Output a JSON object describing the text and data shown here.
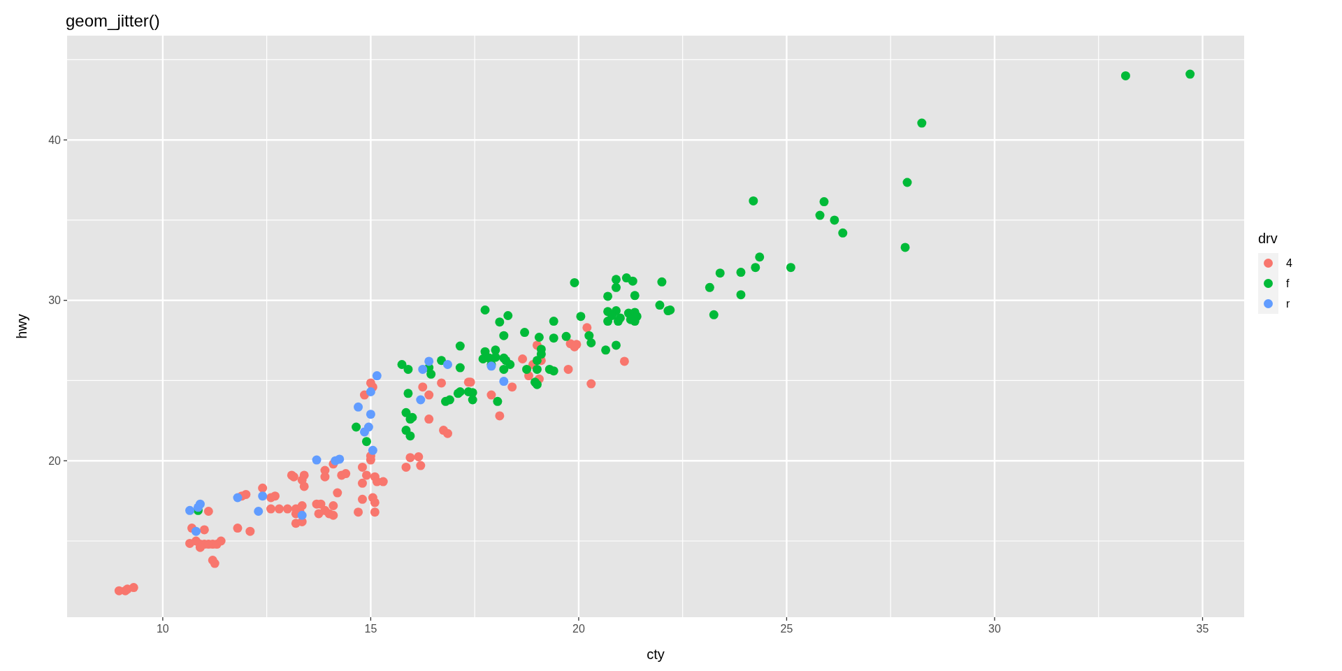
{
  "chart_data": {
    "type": "scatter",
    "title": "geom_jitter()",
    "xlabel": "cty",
    "ylabel": "hwy",
    "legend_title": "drv",
    "legend": "right",
    "grid": true,
    "marker": "circle",
    "xlim": [
      7.7,
      36.0
    ],
    "ylim": [
      10.25,
      46.5
    ],
    "xticks": [
      10,
      {
        "value": 12.5,
        "label": null
      },
      15,
      {
        "value": 17.5,
        "label": null
      },
      20,
      {
        "value": 22.5,
        "label": null
      },
      25,
      {
        "value": 27.5,
        "label": null
      },
      30,
      {
        "value": 32.5,
        "label": null
      },
      35
    ],
    "yticks": [
      {
        "value": 15,
        "label": null
      },
      20,
      {
        "value": 25,
        "label": null
      },
      30,
      {
        "value": 35,
        "label": null
      },
      40,
      {
        "value": 45,
        "label": null
      }
    ],
    "series": [
      {
        "name": "4",
        "color": "#f8766d",
        "x": [
          8.95,
          9.1,
          9.15,
          9.3,
          10.8,
          10.9,
          11.0,
          11.1,
          11.2,
          11.3,
          11.4,
          10.7,
          11.0,
          11.2,
          11.25,
          11.1,
          11.8,
          12.1,
          12.0,
          11.9,
          12.4,
          12.6,
          12.7,
          12.6,
          12.8,
          13.0,
          13.1,
          13.15,
          13.2,
          13.35,
          13.2,
          13.3,
          13.2,
          13.35,
          13.4,
          13.35,
          13.4,
          13.7,
          13.8,
          13.9,
          13.75,
          14.0,
          14.1,
          14.1,
          14.2,
          13.9,
          13.9,
          14.1,
          14.3,
          14.4,
          14.7,
          14.8,
          14.8,
          14.8,
          14.85,
          14.9,
          15.0,
          15.0,
          15.1,
          15.15,
          15.3,
          15.0,
          15.05,
          15.05,
          15.1,
          15.1,
          10.65,
          10.9,
          15.85,
          15.95,
          16.15,
          16.2,
          16.25,
          16.4,
          16.75,
          16.85,
          16.4,
          16.7,
          17.35,
          17.4,
          17.9,
          18.1,
          18.4,
          18.65,
          19.0,
          18.8,
          19.05,
          18.9,
          19.1,
          20.2,
          19.8,
          19.95,
          19.9,
          21.1,
          20.3,
          19.75
        ],
        "values": [
          11.9,
          11.9,
          12.0,
          12.1,
          15.0,
          14.8,
          14.8,
          14.8,
          14.8,
          14.8,
          15.0,
          15.8,
          15.7,
          13.8,
          13.6,
          16.85,
          15.8,
          15.6,
          17.9,
          17.8,
          18.3,
          17.7,
          17.8,
          17.0,
          17.0,
          17.0,
          19.1,
          19.0,
          16.1,
          16.2,
          16.7,
          16.8,
          17.0,
          17.2,
          18.4,
          18.8,
          19.1,
          17.3,
          17.3,
          16.9,
          16.7,
          16.7,
          16.6,
          17.2,
          18.0,
          19.0,
          19.4,
          19.8,
          19.1,
          19.2,
          16.8,
          17.6,
          18.6,
          19.6,
          24.1,
          19.1,
          20.05,
          20.3,
          19.0,
          18.7,
          18.7,
          24.85,
          24.6,
          17.7,
          17.4,
          16.8,
          14.85,
          14.6,
          19.6,
          20.2,
          20.25,
          19.7,
          24.6,
          22.6,
          21.9,
          21.7,
          24.1,
          24.85,
          24.9,
          24.9,
          24.1,
          22.8,
          24.6,
          26.35,
          27.2,
          25.3,
          25.1,
          26.0,
          26.25,
          28.3,
          27.3,
          27.25,
          27.1,
          26.2,
          24.8,
          25.7
        ]
      },
      {
        "name": "f",
        "color": "#00ba38",
        "x": [
          10.85,
          14.65,
          14.9,
          15.75,
          15.9,
          15.9,
          15.85,
          15.95,
          16.0,
          15.85,
          15.95,
          16.4,
          16.45,
          16.7,
          17.15,
          17.15,
          16.8,
          16.9,
          17.1,
          17.15,
          17.35,
          17.45,
          17.45,
          18.05,
          19.9,
          20.9,
          21.15,
          21.3,
          20.9,
          20.7,
          21.35,
          22.0,
          21.95,
          22.15,
          22.2,
          17.75,
          18.3,
          18.1,
          18.2,
          18.7,
          19.05,
          19.4,
          19.4,
          19.7,
          20.05,
          20.25,
          20.3,
          20.65,
          20.9,
          20.7,
          20.9,
          20.7,
          20.95,
          21.0,
          21.2,
          21.35,
          21.4,
          21.35,
          21.25,
          20.8,
          17.75,
          18.0,
          17.7,
          17.85,
          17.9,
          18.0,
          18.2,
          18.25,
          18.2,
          18.35,
          19.1,
          19.1,
          19.0,
          18.75,
          19.0,
          19.3,
          19.4,
          19.0,
          18.95,
          24.35,
          24.25,
          23.9,
          23.4,
          23.15,
          23.9,
          23.25,
          25.1,
          24.2,
          25.9,
          25.8,
          26.15,
          26.35,
          27.85,
          27.9,
          28.25,
          33.15,
          34.7
        ],
        "values": [
          16.9,
          22.1,
          21.2,
          26.0,
          25.7,
          24.2,
          23.0,
          22.6,
          22.7,
          21.9,
          21.55,
          25.8,
          25.4,
          26.25,
          27.15,
          25.8,
          23.7,
          23.8,
          24.2,
          24.3,
          24.3,
          24.25,
          23.8,
          23.7,
          31.1,
          31.3,
          31.4,
          31.2,
          30.8,
          30.25,
          30.3,
          31.15,
          29.7,
          29.35,
          29.4,
          29.4,
          29.05,
          28.65,
          27.8,
          28.0,
          27.7,
          27.65,
          28.7,
          27.75,
          29.0,
          27.8,
          27.35,
          26.9,
          27.2,
          29.3,
          29.35,
          28.7,
          28.7,
          28.9,
          29.2,
          29.25,
          29.0,
          28.7,
          28.8,
          29.05,
          26.8,
          26.9,
          26.35,
          26.4,
          26.0,
          26.45,
          26.4,
          26.25,
          25.7,
          26.0,
          26.95,
          26.65,
          26.25,
          25.7,
          25.7,
          25.7,
          25.6,
          24.75,
          24.9,
          32.7,
          32.05,
          31.75,
          31.7,
          30.8,
          30.35,
          29.1,
          32.05,
          36.2,
          36.15,
          35.3,
          35.0,
          34.2,
          33.3,
          37.35,
          41.05,
          44.0,
          44.1
        ]
      },
      {
        "name": "r",
        "color": "#619cff",
        "x": [
          15.15,
          15.0,
          14.7,
          15.0,
          14.95,
          14.85,
          15.05,
          16.4,
          16.25,
          16.85,
          16.2,
          18.2,
          17.9,
          13.7,
          14.15,
          14.25,
          11.8,
          12.4,
          12.3,
          10.65,
          10.85,
          10.9,
          10.8,
          13.35
        ],
        "values": [
          25.3,
          24.3,
          23.35,
          22.9,
          22.1,
          21.8,
          20.65,
          26.2,
          25.7,
          26.0,
          23.8,
          24.95,
          25.9,
          20.05,
          20.0,
          20.1,
          17.7,
          17.8,
          16.85,
          16.9,
          17.1,
          17.3,
          15.6,
          16.6
        ]
      }
    ]
  }
}
